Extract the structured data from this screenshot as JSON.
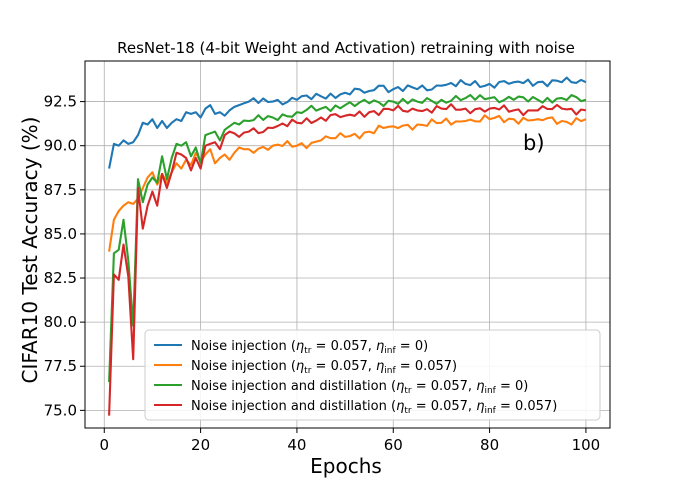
{
  "chart_data": {
    "type": "line",
    "title": "ResNet-18 (4-bit Weight and Activation) retraining with noise",
    "xlabel": "Epochs",
    "ylabel": "CIFAR10 Test Accuracy (%)",
    "annotation": "b)",
    "xlim": [
      -4,
      105
    ],
    "ylim": [
      74.0,
      94.8
    ],
    "xticks": [
      0,
      20,
      40,
      60,
      80,
      100
    ],
    "yticks": [
      75.0,
      77.5,
      80.0,
      82.5,
      85.0,
      87.5,
      90.0,
      92.5
    ],
    "ytick_labels": [
      "75.0",
      "77.5",
      "80.0",
      "82.5",
      "85.0",
      "87.5",
      "90.0",
      "92.5"
    ],
    "grid": true,
    "legend_position": "lower-right",
    "colors": {
      "blue": "#1f77b4",
      "orange": "#ff7f0e",
      "green": "#2ca02c",
      "red": "#d62728"
    },
    "series": [
      {
        "name": "Noise injection (η_tr = 0.057, η_inf = 0)",
        "legend_parts": [
          "Noise injection (",
          "η",
          "tr",
          " = 0.057, ",
          "η",
          "inf",
          " = 0)"
        ],
        "color": "#1f77b4",
        "anchors": [
          [
            1,
            88.7
          ],
          [
            2,
            90.1
          ],
          [
            3,
            90.0
          ],
          [
            4,
            90.3
          ],
          [
            5,
            90.1
          ],
          [
            6,
            90.2
          ],
          [
            7,
            90.6
          ],
          [
            8,
            91.3
          ],
          [
            9,
            91.2
          ],
          [
            10,
            91.5
          ],
          [
            11,
            91.0
          ],
          [
            12,
            91.4
          ],
          [
            13,
            91.0
          ],
          [
            14,
            91.3
          ],
          [
            15,
            91.5
          ],
          [
            16,
            91.4
          ],
          [
            17,
            91.9
          ],
          [
            18,
            91.8
          ],
          [
            19,
            91.9
          ],
          [
            20,
            91.6
          ],
          [
            21,
            92.1
          ],
          [
            22,
            92.3
          ],
          [
            23,
            91.8
          ],
          [
            24,
            91.9
          ],
          [
            25,
            91.7
          ],
          [
            26,
            92.0
          ],
          [
            27,
            92.2
          ],
          [
            28,
            92.3
          ],
          [
            29,
            92.4
          ],
          [
            30,
            92.5
          ],
          [
            35,
            92.5
          ],
          [
            40,
            92.6
          ],
          [
            45,
            92.8
          ],
          [
            50,
            93.0
          ],
          [
            55,
            93.1
          ],
          [
            57,
            93.4
          ],
          [
            60,
            93.2
          ],
          [
            65,
            93.2
          ],
          [
            70,
            93.4
          ],
          [
            75,
            93.5
          ],
          [
            80,
            93.5
          ],
          [
            85,
            93.6
          ],
          [
            90,
            93.6
          ],
          [
            95,
            93.6
          ],
          [
            100,
            93.6
          ]
        ]
      },
      {
        "name": "Noise injection (η_tr = 0.057, η_inf = 0.057)",
        "legend_parts": [
          "Noise injection (",
          "η",
          "tr",
          " = 0.057, ",
          "η",
          "inf",
          " = 0.057)"
        ],
        "color": "#ff7f0e",
        "anchors": [
          [
            1,
            84.0
          ],
          [
            2,
            85.8
          ],
          [
            3,
            86.3
          ],
          [
            4,
            86.6
          ],
          [
            5,
            86.8
          ],
          [
            6,
            86.7
          ],
          [
            7,
            87.0
          ],
          [
            8,
            87.6
          ],
          [
            9,
            88.2
          ],
          [
            10,
            88.5
          ],
          [
            11,
            87.8
          ],
          [
            12,
            88.4
          ],
          [
            13,
            87.9
          ],
          [
            14,
            88.5
          ],
          [
            15,
            89.0
          ],
          [
            16,
            88.7
          ],
          [
            17,
            89.2
          ],
          [
            18,
            88.9
          ],
          [
            19,
            89.6
          ],
          [
            20,
            89.1
          ],
          [
            21,
            89.5
          ],
          [
            22,
            89.8
          ],
          [
            23,
            89.0
          ],
          [
            24,
            89.3
          ],
          [
            25,
            89.5
          ],
          [
            26,
            89.2
          ],
          [
            27,
            89.6
          ],
          [
            28,
            89.9
          ],
          [
            30,
            89.8
          ],
          [
            35,
            90.0
          ],
          [
            40,
            90.0
          ],
          [
            45,
            90.3
          ],
          [
            50,
            90.5
          ],
          [
            55,
            90.8
          ],
          [
            60,
            91.1
          ],
          [
            65,
            91.2
          ],
          [
            70,
            91.3
          ],
          [
            75,
            91.4
          ],
          [
            80,
            91.5
          ],
          [
            85,
            91.5
          ],
          [
            90,
            91.5
          ],
          [
            95,
            91.4
          ],
          [
            100,
            91.5
          ]
        ]
      },
      {
        "name": "Noise injection and distillation (η_tr = 0.057, η_inf = 0)",
        "legend_parts": [
          "Noise injection and distillation (",
          "η",
          "tr",
          " = 0.057, ",
          "η",
          "inf",
          " = 0)"
        ],
        "color": "#2ca02c",
        "anchors": [
          [
            1,
            76.6
          ],
          [
            2,
            83.9
          ],
          [
            3,
            84.1
          ],
          [
            4,
            85.8
          ],
          [
            5,
            83.5
          ],
          [
            6,
            79.8
          ],
          [
            7,
            88.1
          ],
          [
            8,
            86.8
          ],
          [
            9,
            87.8
          ],
          [
            10,
            88.2
          ],
          [
            11,
            87.9
          ],
          [
            12,
            89.4
          ],
          [
            13,
            88.1
          ],
          [
            14,
            89.3
          ],
          [
            15,
            90.1
          ],
          [
            16,
            90.0
          ],
          [
            17,
            90.2
          ],
          [
            18,
            89.4
          ],
          [
            19,
            89.9
          ],
          [
            20,
            89.0
          ],
          [
            21,
            90.6
          ],
          [
            22,
            90.7
          ],
          [
            23,
            90.8
          ],
          [
            24,
            90.3
          ],
          [
            25,
            90.9
          ],
          [
            26,
            91.1
          ],
          [
            27,
            91.3
          ],
          [
            28,
            91.2
          ],
          [
            30,
            91.4
          ],
          [
            35,
            91.6
          ],
          [
            40,
            91.9
          ],
          [
            45,
            92.1
          ],
          [
            50,
            92.3
          ],
          [
            55,
            92.4
          ],
          [
            60,
            92.5
          ],
          [
            65,
            92.5
          ],
          [
            70,
            92.6
          ],
          [
            75,
            92.7
          ],
          [
            80,
            92.7
          ],
          [
            85,
            92.6
          ],
          [
            90,
            92.6
          ],
          [
            95,
            92.7
          ],
          [
            100,
            92.6
          ]
        ]
      },
      {
        "name": "Noise injection and distillation (η_tr = 0.057, η_inf = 0.057)",
        "legend_parts": [
          "Noise injection and distillation (",
          "η",
          "tr",
          " = 0.057, ",
          "η",
          "inf",
          " = 0.057)"
        ],
        "color": "#d62728",
        "anchors": [
          [
            1,
            74.7
          ],
          [
            2,
            82.7
          ],
          [
            3,
            82.4
          ],
          [
            4,
            84.4
          ],
          [
            5,
            82.6
          ],
          [
            6,
            77.9
          ],
          [
            7,
            87.6
          ],
          [
            8,
            85.3
          ],
          [
            9,
            86.6
          ],
          [
            10,
            87.4
          ],
          [
            11,
            86.6
          ],
          [
            12,
            88.4
          ],
          [
            13,
            87.6
          ],
          [
            14,
            88.5
          ],
          [
            15,
            89.6
          ],
          [
            16,
            89.5
          ],
          [
            17,
            89.3
          ],
          [
            18,
            88.6
          ],
          [
            19,
            89.3
          ],
          [
            20,
            88.7
          ],
          [
            21,
            90.0
          ],
          [
            22,
            90.1
          ],
          [
            23,
            90.2
          ],
          [
            24,
            89.8
          ],
          [
            25,
            90.6
          ],
          [
            26,
            90.8
          ],
          [
            27,
            90.7
          ],
          [
            28,
            90.5
          ],
          [
            30,
            90.8
          ],
          [
            35,
            91.0
          ],
          [
            40,
            91.3
          ],
          [
            45,
            91.6
          ],
          [
            50,
            91.7
          ],
          [
            55,
            91.9
          ],
          [
            60,
            92.0
          ],
          [
            65,
            92.0
          ],
          [
            70,
            92.1
          ],
          [
            75,
            92.1
          ],
          [
            80,
            92.1
          ],
          [
            85,
            92.0
          ],
          [
            90,
            92.0
          ],
          [
            95,
            92.1
          ],
          [
            100,
            92.0
          ]
        ]
      }
    ]
  }
}
